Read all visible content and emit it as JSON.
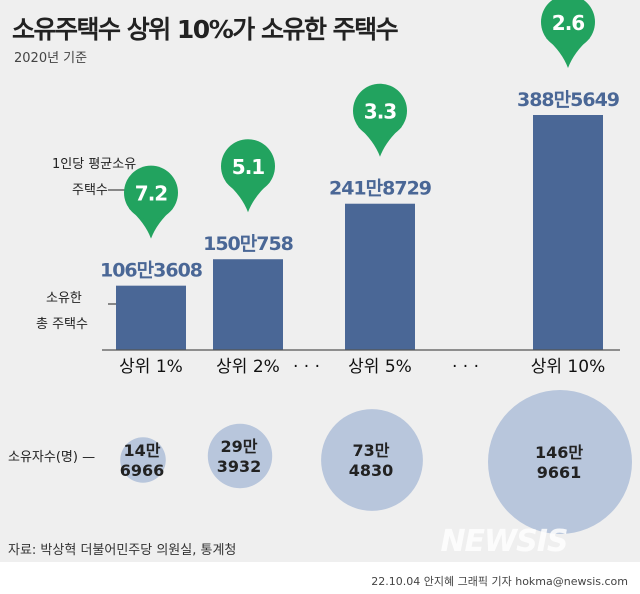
{
  "chart_data": {
    "type": "bar",
    "title": "소유주택수 상위 10%가 소유한 주택수",
    "subtitle": "2020년 기준",
    "categories": [
      "상위 1%",
      "상위 2%",
      "상위 5%",
      "상위 10%"
    ],
    "values": [
      1063608,
      1500758,
      2418729,
      3885649
    ],
    "value_labels": [
      "106만3608",
      "150만758",
      "241만8729",
      "388만5649"
    ],
    "avg_houses_per_person": [
      7.2,
      5.1,
      3.3,
      2.6
    ],
    "avg_labels": [
      "7.2",
      "5.1",
      "3.3",
      "2.6"
    ],
    "owners": [
      146966,
      293932,
      734830,
      1469661
    ],
    "owner_labels": [
      [
        "14만",
        "6966"
      ],
      [
        "29만",
        "3932"
      ],
      [
        "73만",
        "4830"
      ],
      [
        "146만",
        "9661"
      ]
    ],
    "legend": {
      "avg_label": [
        "1인당 평균소유",
        "주택수"
      ],
      "total_label": [
        "소유한",
        "총 주택수"
      ],
      "owners_label": "소유자수(명) —"
    },
    "ellipsis": "· · ·",
    "source": "자료: 박상혁 더불어민주당 의원실, 통계청",
    "credit": "22.10.04 안지혜 그래픽 기자 hokma@newsis.com",
    "logo": "NEWSIS",
    "colors": {
      "bar": "#4a6796",
      "pin": "#22a35f",
      "circle": "#b8c6dc",
      "background": "#efefef"
    }
  }
}
